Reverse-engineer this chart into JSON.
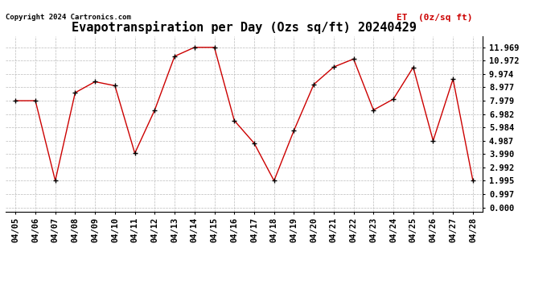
{
  "title": "Evapotranspiration per Day (Ozs sq/ft) 20240429",
  "copyright": "Copyright 2024 Cartronics.com",
  "legend_label": "ET  (0z/sq ft)",
  "dates": [
    "04/05",
    "04/06",
    "04/07",
    "04/08",
    "04/09",
    "04/10",
    "04/11",
    "04/12",
    "04/13",
    "04/14",
    "04/15",
    "04/16",
    "04/17",
    "04/18",
    "04/19",
    "04/20",
    "04/21",
    "04/22",
    "04/23",
    "04/24",
    "04/25",
    "04/26",
    "04/27",
    "04/28"
  ],
  "values": [
    7.979,
    7.979,
    1.995,
    8.58,
    9.4,
    9.1,
    4.05,
    7.28,
    11.3,
    11.969,
    11.969,
    6.5,
    4.8,
    1.995,
    5.75,
    9.2,
    10.5,
    11.1,
    7.28,
    8.1,
    10.48,
    4.987,
    9.6,
    1.995
  ],
  "line_color": "#cc0000",
  "marker_color": "#000000",
  "background_color": "#ffffff",
  "grid_color": "#bbbbbb",
  "yticks": [
    0.0,
    0.997,
    1.995,
    2.992,
    3.99,
    4.987,
    5.984,
    6.982,
    7.979,
    8.977,
    9.974,
    10.972,
    11.969
  ],
  "ylim": [
    -0.3,
    12.8
  ],
  "title_fontsize": 11,
  "tick_fontsize": 7.5,
  "copyright_fontsize": 6.5,
  "legend_fontsize": 8
}
